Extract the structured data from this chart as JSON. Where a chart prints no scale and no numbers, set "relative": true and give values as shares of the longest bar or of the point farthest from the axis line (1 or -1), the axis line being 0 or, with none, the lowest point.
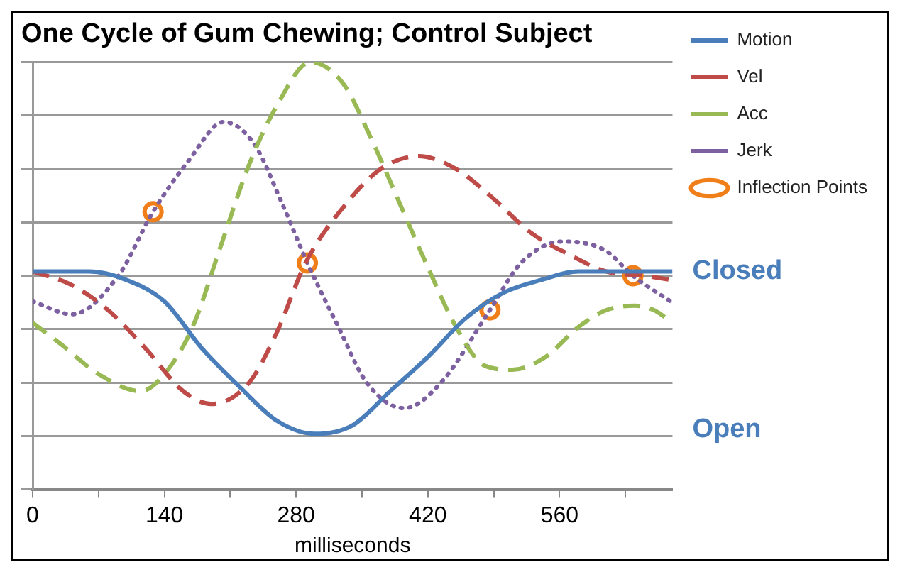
{
  "chart_data": {
    "type": "line",
    "title": "One Cycle of Gum Chewing; Control Subject",
    "xlabel": "milliseconds",
    "relative": true,
    "grid": "y",
    "legend": "right",
    "xlim": [
      0,
      680
    ],
    "xticks": [
      0,
      {
        "value": 70,
        "label": null
      },
      140,
      {
        "value": 210,
        "label": null
      },
      280,
      {
        "value": 350,
        "label": null
      },
      420,
      {
        "value": 490,
        "label": null
      },
      560,
      {
        "value": 630,
        "label": null
      }
    ],
    "annotations": [
      "Closed",
      "Open"
    ],
    "series": [
      {
        "name": "Motion",
        "color": "#4a7ebb",
        "line_style": "solid",
        "marker": "none",
        "x": [
          0,
          60,
          100,
          140,
          180,
          220,
          260,
          300,
          340,
          380,
          420,
          460,
          500,
          540,
          580,
          620,
          680
        ],
        "values": [
          0.51,
          0.51,
          0.49,
          0.44,
          0.33,
          0.24,
          0.16,
          0.13,
          0.15,
          0.23,
          0.31,
          0.4,
          0.46,
          0.49,
          0.51,
          0.51,
          0.51
        ]
      },
      {
        "name": "Vel",
        "color": "#be4b48",
        "line_style": "dashed",
        "marker": "none",
        "x": [
          0,
          40,
          80,
          120,
          160,
          190,
          230,
          260,
          290,
          330,
          370,
          410,
          450,
          490,
          530,
          570,
          610,
          650,
          680
        ],
        "values": [
          0.51,
          0.48,
          0.42,
          0.33,
          0.23,
          0.2,
          0.25,
          0.37,
          0.53,
          0.66,
          0.75,
          0.78,
          0.75,
          0.68,
          0.6,
          0.55,
          0.51,
          0.5,
          0.49
        ]
      },
      {
        "name": "Acc",
        "color": "#98b954",
        "line_style": "dashed",
        "marker": "none",
        "x": [
          0,
          30,
          70,
          115,
          140,
          170,
          200,
          230,
          260,
          295,
          330,
          360,
          390,
          420,
          450,
          480,
          510,
          545,
          580,
          610,
          640,
          660,
          680
        ],
        "values": [
          0.39,
          0.34,
          0.27,
          0.23,
          0.27,
          0.38,
          0.57,
          0.76,
          0.9,
          1,
          0.95,
          0.82,
          0.67,
          0.52,
          0.38,
          0.29,
          0.28,
          0.31,
          0.38,
          0.42,
          0.43,
          0.42,
          0.39
        ]
      },
      {
        "name": "Jerk",
        "color": "#7d60a0",
        "line_style": "dotted",
        "marker": "none",
        "x": [
          0,
          42,
          91,
          128,
          166,
          203,
          235,
          265,
          292,
          325,
          355,
          395,
          434,
          486,
          519,
          563,
          608,
          638,
          678
        ],
        "values": [
          0.44,
          0.41,
          0.5,
          0.65,
          0.77,
          0.86,
          0.81,
          0.67,
          0.53,
          0.38,
          0.25,
          0.19,
          0.25,
          0.42,
          0.53,
          0.58,
          0.56,
          0.5,
          0.44
        ]
      },
      {
        "name": "Inflection Points",
        "type": "scatter",
        "color": "#f07f1a",
        "marker": "circle",
        "x": [
          128,
          292,
          486,
          638
        ],
        "values": [
          0.65,
          0.53,
          0.42,
          0.5
        ]
      }
    ]
  }
}
